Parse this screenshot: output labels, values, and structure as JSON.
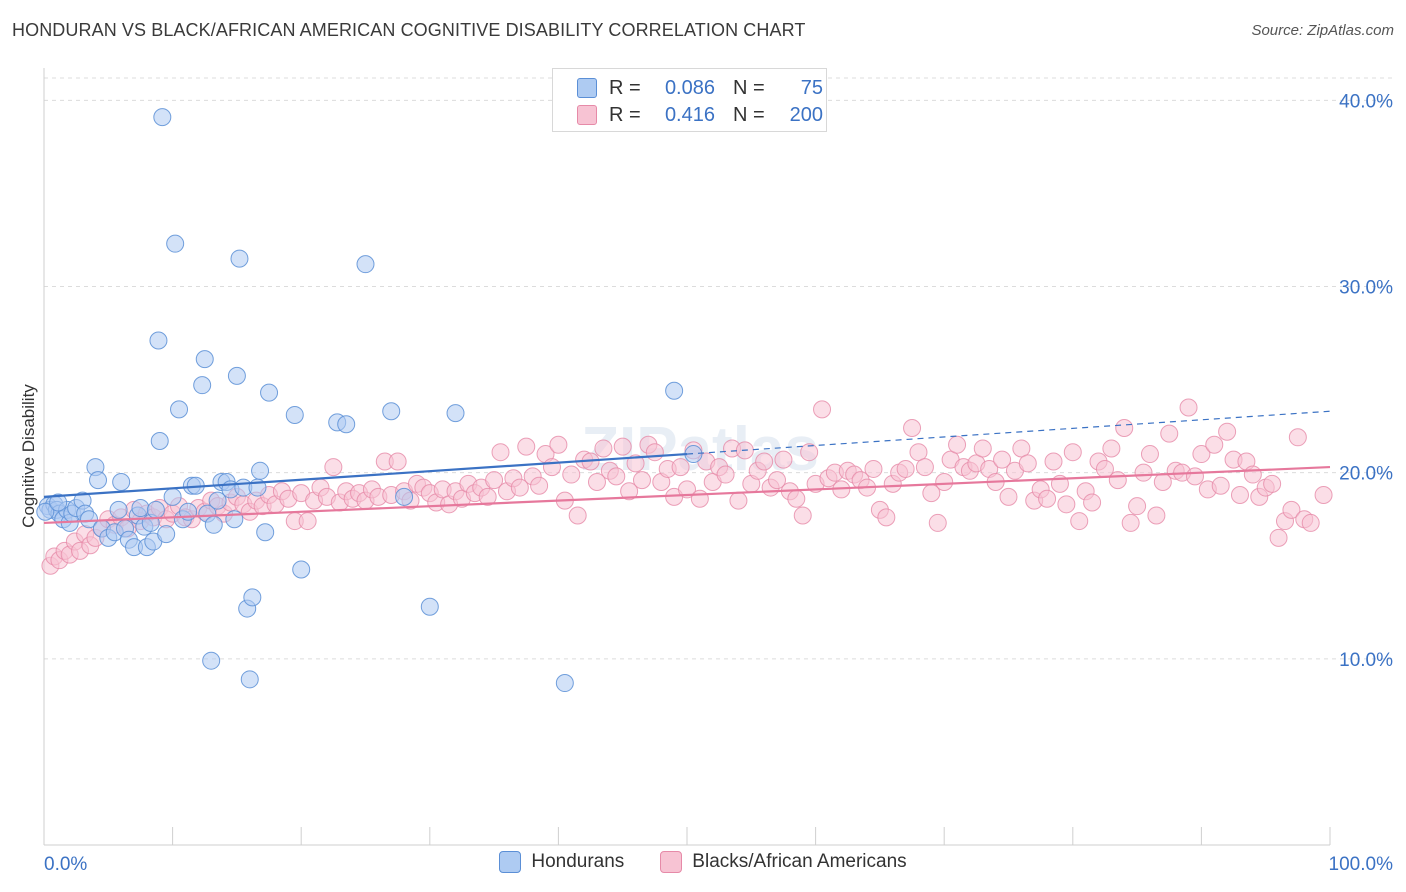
{
  "title": "HONDURAN VS BLACK/AFRICAN AMERICAN COGNITIVE DISABILITY CORRELATION CHART",
  "source": "Source: ZipAtlas.com",
  "watermark": "ZIPatlas",
  "legend": {
    "r_label": "R =",
    "n_label": "N =",
    "rows": [
      {
        "r": "0.086",
        "n": "75",
        "color": "#aecbf2",
        "stroke": "#5b8fd6"
      },
      {
        "r": "0.416",
        "n": "200",
        "color": "#f7c3d3",
        "stroke": "#e68aa8"
      }
    ]
  },
  "bottom_legend": [
    {
      "label": "Hondurans",
      "color": "#aecbf2",
      "stroke": "#5b8fd6"
    },
    {
      "label": "Blacks/African Americans",
      "color": "#f7c3d3",
      "stroke": "#e68aa8"
    }
  ],
  "chart_data": {
    "type": "scatter",
    "title": "HONDURAN VS BLACK/AFRICAN AMERICAN COGNITIVE DISABILITY CORRELATION CHART",
    "xlabel": "",
    "ylabel": "Cognitive Disability",
    "xlim": [
      0,
      100
    ],
    "ylim": [
      0,
      41.2
    ],
    "x_tick_labels": [
      "0.0%",
      "100.0%"
    ],
    "y_ticks": [
      10,
      20,
      30,
      40
    ],
    "y_tick_labels": [
      "10.0%",
      "20.0%",
      "30.0%",
      "40.0%"
    ],
    "grid": true,
    "colors": {
      "blue": "#3b72c4",
      "pink": "#e6789c",
      "axis_text": "#3b72c4"
    },
    "series": [
      {
        "name": "Hondurans",
        "color": "#5b8fd6",
        "fill": "#aecbf2",
        "trend": {
          "x": [
            0,
            50
          ],
          "y": [
            18.7,
            21.0
          ]
        },
        "trend_dashed": {
          "x": [
            50,
            100
          ],
          "y": [
            21.0,
            23.3
          ]
        },
        "points": [
          [
            0.3,
            18.2
          ],
          [
            0.5,
            18.0
          ],
          [
            0.8,
            18.3
          ],
          [
            1.0,
            18.0
          ],
          [
            1.2,
            17.8
          ],
          [
            1.5,
            17.5
          ],
          [
            1.8,
            18.0
          ],
          [
            2.0,
            17.3
          ],
          [
            2.2,
            17.8
          ],
          [
            2.5,
            18.1
          ],
          [
            3.0,
            18.5
          ],
          [
            3.2,
            17.8
          ],
          [
            3.5,
            17.5
          ],
          [
            4.0,
            20.3
          ],
          [
            4.2,
            19.6
          ],
          [
            4.5,
            17.0
          ],
          [
            5.0,
            16.5
          ],
          [
            5.5,
            16.8
          ],
          [
            5.8,
            18.0
          ],
          [
            6.0,
            19.5
          ],
          [
            6.3,
            17.0
          ],
          [
            6.6,
            16.4
          ],
          [
            7.0,
            16.0
          ],
          [
            7.3,
            17.7
          ],
          [
            7.5,
            18.1
          ],
          [
            7.8,
            17.1
          ],
          [
            8.0,
            16.0
          ],
          [
            8.3,
            17.3
          ],
          [
            8.5,
            16.3
          ],
          [
            8.7,
            18.0
          ],
          [
            8.9,
            27.1
          ],
          [
            9.0,
            21.7
          ],
          [
            9.2,
            39.1
          ],
          [
            9.5,
            16.7
          ],
          [
            10.0,
            18.7
          ],
          [
            10.2,
            32.3
          ],
          [
            10.5,
            23.4
          ],
          [
            10.8,
            17.5
          ],
          [
            11.2,
            17.9
          ],
          [
            11.5,
            19.3
          ],
          [
            11.8,
            19.3
          ],
          [
            12.3,
            24.7
          ],
          [
            12.5,
            26.1
          ],
          [
            12.7,
            17.8
          ],
          [
            13.0,
            9.9
          ],
          [
            13.2,
            17.2
          ],
          [
            13.5,
            18.5
          ],
          [
            13.8,
            19.5
          ],
          [
            14.2,
            19.5
          ],
          [
            14.5,
            19.1
          ],
          [
            14.8,
            17.5
          ],
          [
            15.0,
            25.2
          ],
          [
            15.2,
            31.5
          ],
          [
            15.5,
            19.2
          ],
          [
            15.8,
            12.7
          ],
          [
            16.0,
            8.9
          ],
          [
            16.2,
            13.3
          ],
          [
            16.6,
            19.2
          ],
          [
            16.8,
            20.1
          ],
          [
            17.2,
            16.8
          ],
          [
            17.5,
            24.3
          ],
          [
            19.5,
            23.1
          ],
          [
            20.0,
            14.8
          ],
          [
            22.8,
            22.7
          ],
          [
            23.5,
            22.6
          ],
          [
            25.0,
            31.2
          ],
          [
            27.0,
            23.3
          ],
          [
            28.0,
            18.7
          ],
          [
            30.0,
            12.8
          ],
          [
            32.0,
            23.2
          ],
          [
            40.5,
            8.7
          ],
          [
            49.0,
            24.4
          ],
          [
            50.5,
            21.0
          ],
          [
            0.1,
            17.9
          ],
          [
            1.1,
            18.4
          ]
        ]
      },
      {
        "name": "Blacks/African Americans",
        "color": "#e68aa8",
        "fill": "#f7c3d3",
        "trend": {
          "x": [
            0,
            100
          ],
          "y": [
            17.3,
            20.3
          ]
        },
        "points": [
          [
            0.5,
            15.0
          ],
          [
            0.8,
            15.5
          ],
          [
            1.2,
            15.3
          ],
          [
            1.6,
            15.8
          ],
          [
            2.0,
            15.6
          ],
          [
            2.4,
            16.3
          ],
          [
            2.8,
            15.8
          ],
          [
            3.2,
            16.7
          ],
          [
            3.6,
            16.1
          ],
          [
            4.0,
            16.5
          ],
          [
            4.5,
            17.0
          ],
          [
            5.0,
            17.5
          ],
          [
            5.5,
            17.2
          ],
          [
            6.0,
            17.6
          ],
          [
            6.5,
            17.0
          ],
          [
            7.0,
            18.0
          ],
          [
            7.5,
            17.4
          ],
          [
            8.0,
            17.8
          ],
          [
            8.5,
            17.6
          ],
          [
            9.0,
            18.1
          ],
          [
            9.5,
            17.5
          ],
          [
            10.0,
            17.8
          ],
          [
            10.5,
            18.2
          ],
          [
            11.0,
            17.6
          ],
          [
            11.5,
            17.5
          ],
          [
            12.0,
            18.1
          ],
          [
            12.5,
            17.9
          ],
          [
            13.0,
            18.5
          ],
          [
            13.5,
            18.2
          ],
          [
            14.0,
            17.8
          ],
          [
            14.5,
            18.4
          ],
          [
            15.0,
            18.7
          ],
          [
            15.5,
            18.3
          ],
          [
            16.0,
            17.9
          ],
          [
            16.5,
            18.5
          ],
          [
            17.0,
            18.2
          ],
          [
            17.5,
            18.8
          ],
          [
            18.0,
            18.3
          ],
          [
            18.5,
            19.0
          ],
          [
            19.0,
            18.6
          ],
          [
            19.5,
            17.4
          ],
          [
            20.0,
            18.9
          ],
          [
            20.5,
            17.4
          ],
          [
            21.0,
            18.5
          ],
          [
            21.5,
            19.2
          ],
          [
            22.0,
            18.7
          ],
          [
            22.5,
            20.3
          ],
          [
            23.0,
            18.4
          ],
          [
            23.5,
            19.0
          ],
          [
            24.0,
            18.6
          ],
          [
            24.5,
            18.9
          ],
          [
            25.0,
            18.5
          ],
          [
            25.5,
            19.1
          ],
          [
            26.0,
            18.7
          ],
          [
            26.5,
            20.6
          ],
          [
            27.0,
            18.8
          ],
          [
            27.5,
            20.6
          ],
          [
            28.0,
            19.0
          ],
          [
            28.5,
            18.5
          ],
          [
            29.0,
            19.4
          ],
          [
            29.5,
            19.2
          ],
          [
            30.0,
            18.9
          ],
          [
            30.5,
            18.4
          ],
          [
            31.0,
            19.1
          ],
          [
            31.5,
            18.3
          ],
          [
            32.0,
            19.0
          ],
          [
            32.5,
            18.6
          ],
          [
            33.0,
            19.4
          ],
          [
            33.5,
            18.9
          ],
          [
            34.0,
            19.2
          ],
          [
            34.5,
            18.7
          ],
          [
            35.0,
            19.6
          ],
          [
            35.5,
            21.1
          ],
          [
            36.0,
            19.0
          ],
          [
            36.5,
            19.7
          ],
          [
            37.0,
            19.2
          ],
          [
            37.5,
            21.4
          ],
          [
            38.0,
            19.8
          ],
          [
            38.5,
            19.3
          ],
          [
            39.0,
            21.0
          ],
          [
            39.5,
            20.3
          ],
          [
            40.0,
            21.5
          ],
          [
            40.5,
            18.5
          ],
          [
            41.0,
            19.9
          ],
          [
            41.5,
            17.7
          ],
          [
            42.0,
            20.7
          ],
          [
            42.5,
            20.6
          ],
          [
            43.0,
            19.5
          ],
          [
            43.5,
            21.3
          ],
          [
            44.0,
            20.1
          ],
          [
            44.5,
            19.8
          ],
          [
            45.0,
            21.4
          ],
          [
            45.5,
            19.0
          ],
          [
            46.0,
            20.5
          ],
          [
            46.5,
            19.6
          ],
          [
            47.0,
            21.5
          ],
          [
            47.5,
            21.1
          ],
          [
            48.0,
            19.5
          ],
          [
            48.5,
            20.2
          ],
          [
            49.0,
            18.7
          ],
          [
            49.5,
            20.3
          ],
          [
            50.0,
            19.1
          ],
          [
            50.5,
            21.2
          ],
          [
            51.0,
            18.6
          ],
          [
            51.5,
            20.6
          ],
          [
            52.0,
            19.5
          ],
          [
            52.5,
            20.3
          ],
          [
            53.0,
            19.9
          ],
          [
            53.5,
            21.3
          ],
          [
            54.0,
            18.5
          ],
          [
            54.5,
            21.2
          ],
          [
            55.0,
            19.4
          ],
          [
            55.5,
            20.1
          ],
          [
            56.0,
            20.6
          ],
          [
            56.5,
            19.2
          ],
          [
            57.0,
            19.6
          ],
          [
            57.5,
            20.7
          ],
          [
            58.0,
            19.0
          ],
          [
            58.5,
            18.6
          ],
          [
            59.0,
            17.7
          ],
          [
            59.5,
            21.1
          ],
          [
            60.0,
            19.4
          ],
          [
            60.5,
            23.4
          ],
          [
            61.0,
            19.7
          ],
          [
            61.5,
            20.0
          ],
          [
            62.0,
            19.1
          ],
          [
            62.5,
            20.1
          ],
          [
            63.0,
            19.9
          ],
          [
            63.5,
            19.6
          ],
          [
            64.0,
            19.2
          ],
          [
            64.5,
            20.2
          ],
          [
            65.0,
            18.0
          ],
          [
            65.5,
            17.6
          ],
          [
            66.0,
            19.4
          ],
          [
            66.5,
            20.0
          ],
          [
            67.0,
            20.2
          ],
          [
            67.5,
            22.4
          ],
          [
            68.0,
            21.1
          ],
          [
            68.5,
            20.3
          ],
          [
            69.0,
            18.9
          ],
          [
            69.5,
            17.3
          ],
          [
            70.0,
            19.5
          ],
          [
            70.5,
            20.7
          ],
          [
            71.0,
            21.5
          ],
          [
            71.5,
            20.3
          ],
          [
            72.0,
            20.1
          ],
          [
            72.5,
            20.5
          ],
          [
            73.0,
            21.3
          ],
          [
            73.5,
            20.2
          ],
          [
            74.0,
            19.5
          ],
          [
            74.5,
            20.7
          ],
          [
            75.0,
            18.7
          ],
          [
            75.5,
            20.1
          ],
          [
            76.0,
            21.3
          ],
          [
            76.5,
            20.5
          ],
          [
            77.0,
            18.5
          ],
          [
            77.5,
            19.1
          ],
          [
            78.0,
            18.6
          ],
          [
            78.5,
            20.6
          ],
          [
            79.0,
            19.4
          ],
          [
            79.5,
            18.3
          ],
          [
            80.0,
            21.1
          ],
          [
            80.5,
            17.4
          ],
          [
            81.0,
            19.0
          ],
          [
            81.5,
            18.4
          ],
          [
            82.0,
            20.6
          ],
          [
            82.5,
            20.2
          ],
          [
            83.0,
            21.3
          ],
          [
            83.5,
            19.6
          ],
          [
            84.0,
            22.4
          ],
          [
            84.5,
            17.3
          ],
          [
            85.0,
            18.2
          ],
          [
            85.5,
            20.0
          ],
          [
            86.0,
            21.0
          ],
          [
            86.5,
            17.7
          ],
          [
            87.0,
            19.5
          ],
          [
            87.5,
            22.1
          ],
          [
            88.0,
            20.1
          ],
          [
            88.5,
            20.0
          ],
          [
            89.0,
            23.5
          ],
          [
            89.5,
            19.8
          ],
          [
            90.0,
            21.0
          ],
          [
            90.5,
            19.1
          ],
          [
            91.0,
            21.5
          ],
          [
            91.5,
            19.3
          ],
          [
            92.0,
            22.2
          ],
          [
            92.5,
            20.7
          ],
          [
            93.0,
            18.8
          ],
          [
            93.5,
            20.6
          ],
          [
            94.0,
            19.9
          ],
          [
            94.5,
            18.7
          ],
          [
            95.0,
            19.2
          ],
          [
            95.5,
            19.4
          ],
          [
            96.0,
            16.5
          ],
          [
            96.5,
            17.4
          ],
          [
            97.0,
            18.0
          ],
          [
            97.5,
            21.9
          ],
          [
            98.0,
            17.5
          ],
          [
            98.5,
            17.3
          ],
          [
            99.5,
            18.8
          ]
        ]
      }
    ]
  }
}
